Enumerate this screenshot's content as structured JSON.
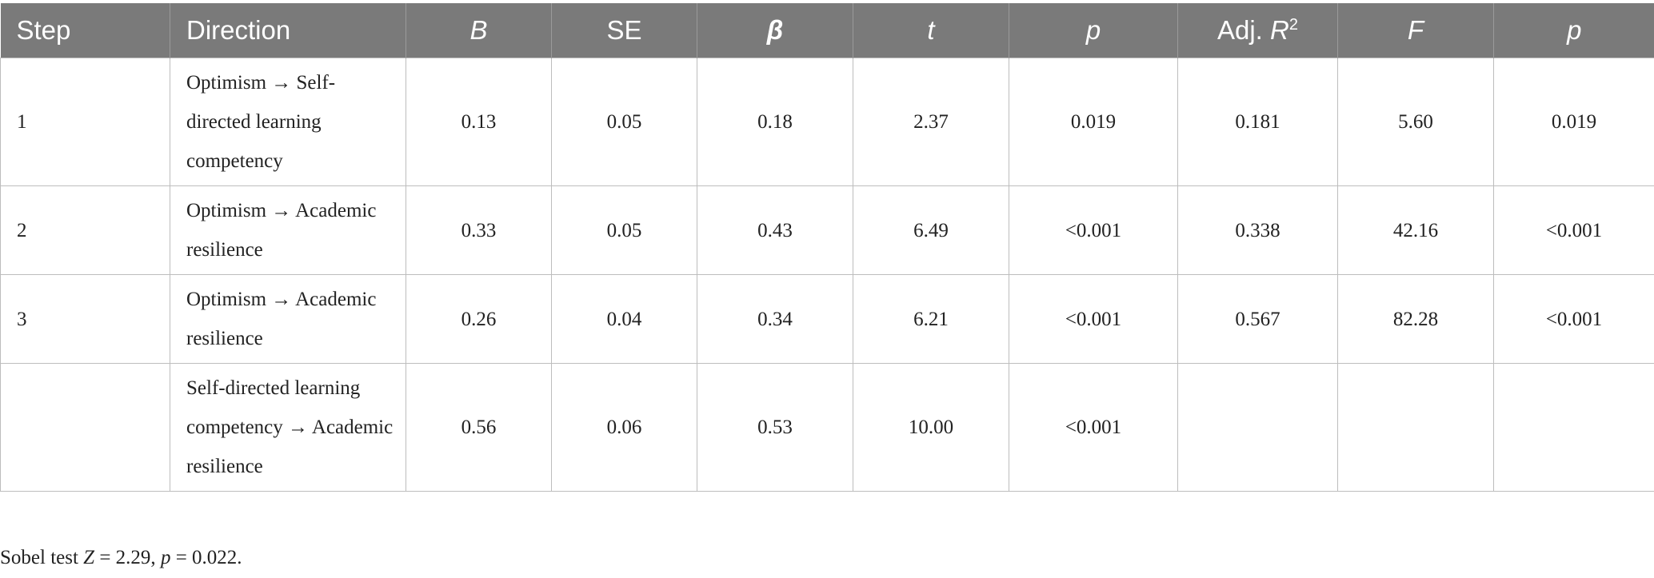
{
  "table": {
    "headers": {
      "step": "Step",
      "direction": "Direction",
      "B": "B",
      "SE": "SE",
      "beta": "β",
      "t": "t",
      "p1": "p",
      "adj_r2_prefix": "Adj. ",
      "adj_r2_var": "R",
      "adj_r2_sup": "2",
      "F": "F",
      "p2": "p"
    },
    "rows": [
      {
        "step": "1",
        "direction": "Optimism → Self-directed learning competency",
        "B": "0.13",
        "SE": "0.05",
        "beta": "0.18",
        "t": "2.37",
        "p1": "0.019",
        "adj_r2": "0.181",
        "F": "5.60",
        "p2": "0.019"
      },
      {
        "step": "2",
        "direction": "Optimism → Academic resilience",
        "B": "0.33",
        "SE": "0.05",
        "beta": "0.43",
        "t": "6.49",
        "p1": "<0.001",
        "adj_r2": "0.338",
        "F": "42.16",
        "p2": "<0.001"
      },
      {
        "step": "3",
        "direction": "Optimism → Academic resilience",
        "B": "0.26",
        "SE": "0.04",
        "beta": "0.34",
        "t": "6.21",
        "p1": "<0.001",
        "adj_r2": "0.567",
        "F": "82.28",
        "p2": "<0.001"
      },
      {
        "step": "",
        "direction": "Self-directed learning competency → Academic resilience",
        "B": "0.56",
        "SE": "0.06",
        "beta": "0.53",
        "t": "10.00",
        "p1": "<0.001",
        "adj_r2": "",
        "F": "",
        "p2": ""
      }
    ]
  },
  "note": {
    "prefix": "Sobel test ",
    "z_var": "Z",
    "z_value": " = 2.29, ",
    "p_var": "p",
    "p_value": " = 0.022."
  }
}
